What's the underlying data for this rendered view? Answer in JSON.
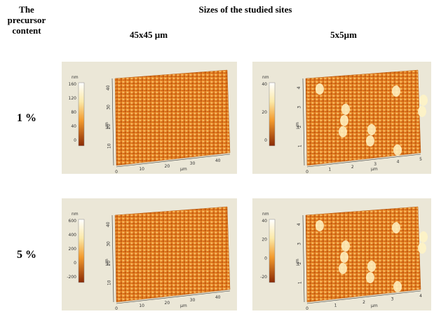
{
  "header": {
    "row_header": "The precursor content",
    "title": "Sizes of the studied sites",
    "columns": [
      "45x45 µm",
      "5x5µm"
    ]
  },
  "rows": [
    {
      "label": "1 %",
      "images": [
        {
          "colorbar_unit": "nm",
          "colorbar_ticks": [
            160,
            120,
            80,
            40,
            0
          ],
          "x_ticks": [
            0,
            10,
            20,
            30,
            40
          ],
          "x_unit": "µm",
          "y_ticks": [
            10,
            20,
            30,
            40
          ],
          "y_unit": "µm"
        },
        {
          "colorbar_unit": "nm",
          "colorbar_ticks": [
            40,
            20,
            0
          ],
          "x_ticks": [
            0,
            1,
            2,
            3,
            4,
            5
          ],
          "x_unit": "µm",
          "y_ticks": [
            1,
            2,
            3,
            4
          ],
          "y_unit": "µm"
        }
      ]
    },
    {
      "label": "5 %",
      "images": [
        {
          "colorbar_unit": "nm",
          "colorbar_ticks": [
            600,
            400,
            200,
            0,
            -200
          ],
          "x_ticks": [
            0,
            10,
            20,
            30,
            40
          ],
          "x_unit": "µm",
          "y_ticks": [
            10,
            20,
            30,
            40
          ],
          "y_unit": "µm"
        },
        {
          "colorbar_unit": "nm",
          "colorbar_ticks": [
            40,
            20,
            0,
            -20
          ],
          "x_ticks": [
            0,
            1,
            2,
            3,
            4
          ],
          "x_unit": "µm",
          "y_ticks": [
            1,
            2,
            3,
            4
          ],
          "y_unit": "µm"
        }
      ]
    }
  ]
}
